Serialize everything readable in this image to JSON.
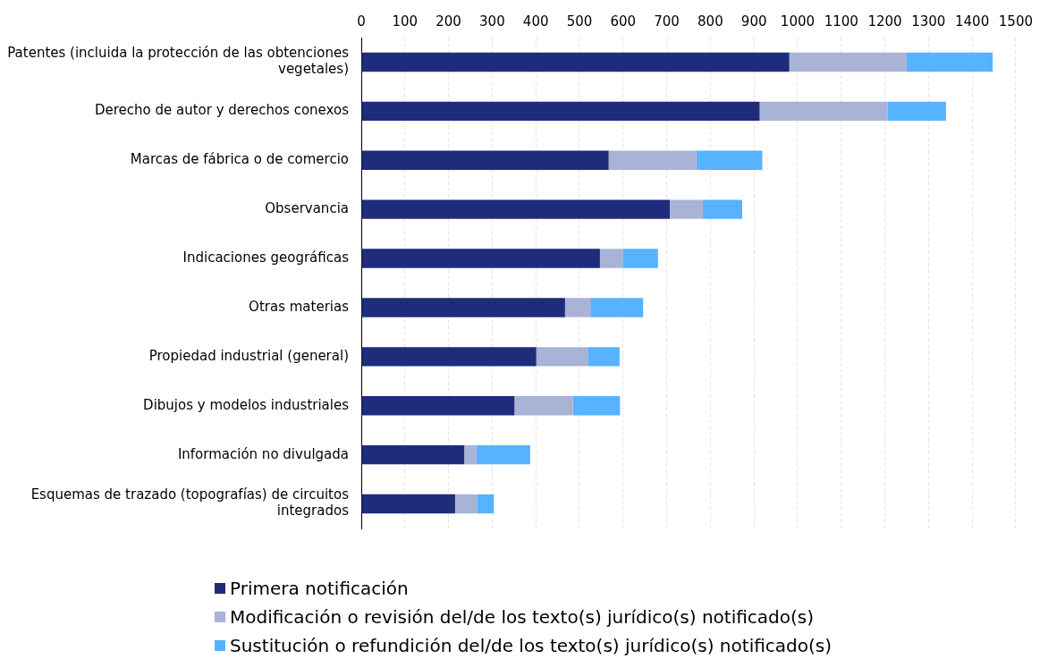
{
  "chart_data": {
    "type": "bar",
    "orientation": "horizontal",
    "stacked": true,
    "categories": [
      "Patentes (incluida la protección de las obtenciones vegetales)",
      "Derecho de autor y derechos conexos",
      "Marcas de fábrica o de comercio",
      "Observancia",
      "Indicaciones geográficas",
      "Otras materias",
      "Propiedad industrial (general)",
      "Dibujos y modelos industriales",
      "Información no divulgada",
      "Esquemas de trazado (topografías) de circuitos integrados"
    ],
    "series": [
      {
        "name": "Primera notificación",
        "color": "#1f2c7c",
        "values": [
          981,
          913,
          567,
          707,
          547,
          467,
          401,
          351,
          236,
          215
        ]
      },
      {
        "name": "Modificación o revisión del/de los texto(s) jurídico(s) notificado(s)",
        "color": "#a8b3d6",
        "values": [
          269,
          293,
          201,
          76,
          52,
          58,
          118,
          134,
          28,
          50
        ]
      },
      {
        "name": "Sustitución o refundición del/de los texto(s) jurídico(s) notificado(s)",
        "color": "#57b2ff",
        "values": [
          197,
          134,
          151,
          90,
          81,
          121,
          73,
          108,
          123,
          39
        ]
      }
    ],
    "xlim": [
      0,
      1500
    ],
    "xticks": [
      0,
      100,
      200,
      300,
      400,
      500,
      600,
      700,
      800,
      900,
      1000,
      1100,
      1200,
      1300,
      1400,
      1500
    ],
    "grid": "x",
    "legend": "bottom"
  }
}
